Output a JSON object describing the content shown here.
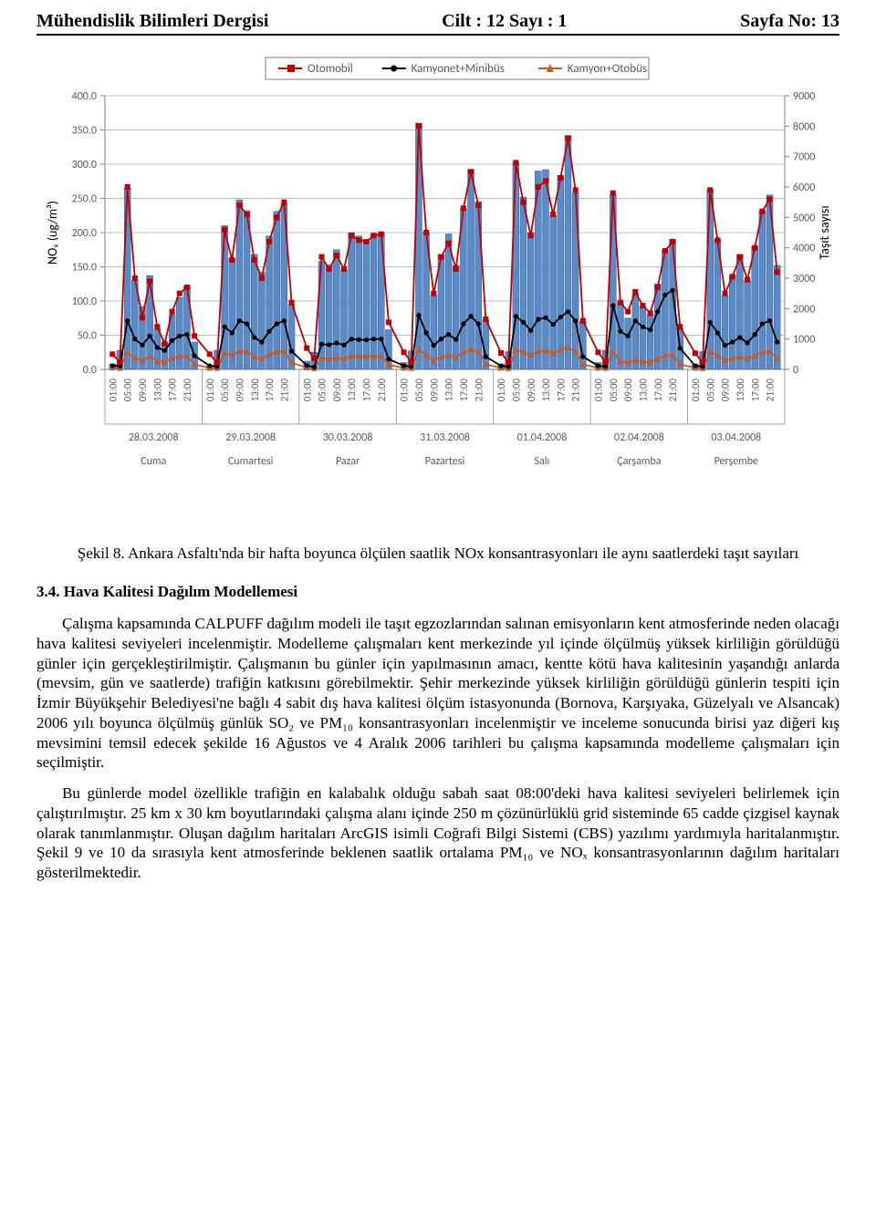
{
  "header": {
    "left": "Mühendislik Bilimleri Dergisi",
    "center": "Cilt : 12 Sayı : 1",
    "right": "Sayfa No: 13"
  },
  "chart": {
    "type": "combo-bar-line",
    "background_color": "#ffffff",
    "plot_border_color": "#808080",
    "grid_color": "#bfbfbf",
    "axis_text_color": "#595959",
    "tick_font_size": 12,
    "legend_font_size": 13,
    "left_axis": {
      "label": "NOₓ (ug/m³)",
      "min": 0,
      "max": 400,
      "step": 50,
      "ticks": [
        "0.0",
        "50.0",
        "100.0",
        "150.0",
        "200.0",
        "250.0",
        "300.0",
        "350.0",
        "400.0"
      ]
    },
    "right_axis": {
      "label": "Taşıt sayısı",
      "min": 0,
      "max": 9000,
      "step": 1000,
      "ticks": [
        "0",
        "1000",
        "2000",
        "3000",
        "4000",
        "5000",
        "6000",
        "7000",
        "8000",
        "9000"
      ]
    },
    "legend": [
      {
        "name": "Otomobil",
        "type": "line-square",
        "color": "#c00000"
      },
      {
        "name": "Kamyonet+Minibüs",
        "type": "line-dot",
        "color": "#000000"
      },
      {
        "name": "Kamyon+Otobüs",
        "type": "line-triangle",
        "color": "#c55a2a"
      }
    ],
    "bar_color": "#5b8bc7",
    "bar_border_color": "#2e5a99",
    "days": [
      {
        "date": "28.03.2008",
        "name": "Cuma",
        "hours": [
          "01:00",
          "05:00",
          "09:00",
          "13:00",
          "17:00",
          "21:00"
        ],
        "bars_nox": [
          8,
          28,
          265,
          130,
          92,
          137,
          59,
          39,
          80,
          105,
          122,
          40
        ],
        "otomobil": [
          500,
          230,
          6000,
          3000,
          1700,
          2900,
          1400,
          850,
          1900,
          2500,
          2700,
          1100
        ],
        "kam_min": [
          120,
          110,
          1600,
          1000,
          800,
          1100,
          720,
          620,
          950,
          1100,
          1150,
          450
        ],
        "kam_oto": [
          60,
          40,
          550,
          380,
          280,
          430,
          280,
          240,
          370,
          430,
          450,
          160
        ]
      },
      {
        "date": "29.03.2008",
        "name": "Cumartesi",
        "hours": [
          "01:00",
          "05:00",
          "09:00",
          "13:00",
          "17:00",
          "21:00"
        ],
        "bars_nox": [
          5,
          28,
          210,
          162,
          248,
          232,
          168,
          142,
          195,
          231,
          242,
          95
        ],
        "otomobil": [
          500,
          220,
          4600,
          3600,
          5400,
          5100,
          3600,
          3000,
          4200,
          5000,
          5500,
          2200
        ],
        "kam_min": [
          120,
          100,
          1400,
          1200,
          1600,
          1500,
          1050,
          900,
          1250,
          1500,
          1600,
          600
        ],
        "kam_oto": [
          50,
          40,
          540,
          460,
          600,
          590,
          420,
          350,
          490,
          570,
          600,
          220
        ]
      },
      {
        "date": "30.03.2008",
        "name": "Pazar",
        "hours": [
          "01:00",
          "05:00",
          "09:00",
          "13:00",
          "17:00",
          "21:00"
        ],
        "bars_nox": [
          12,
          25,
          158,
          153,
          175,
          145,
          200,
          195,
          190,
          198,
          200,
          58
        ],
        "otomobil": [
          700,
          360,
          3700,
          3300,
          3750,
          3300,
          4400,
          4250,
          4200,
          4400,
          4450,
          1550
        ],
        "kam_min": [
          130,
          75,
          830,
          810,
          870,
          800,
          1000,
          980,
          970,
          1000,
          1000,
          340
        ],
        "kam_oto": [
          55,
          35,
          360,
          350,
          380,
          350,
          440,
          430,
          420,
          440,
          440,
          150
        ]
      },
      {
        "date": "31.03.2008",
        "name": "Pazartesi",
        "hours": [
          "01:00",
          "05:00",
          "09:00",
          "13:00",
          "17:00",
          "21:00"
        ],
        "bars_nox": [
          10,
          27,
          360,
          200,
          108,
          168,
          198,
          152,
          235,
          292,
          245,
          72
        ],
        "otomobil": [
          560,
          240,
          8000,
          4500,
          2500,
          3700,
          4150,
          3300,
          5300,
          6500,
          5400,
          1650
        ],
        "kam_min": [
          120,
          95,
          1780,
          1200,
          790,
          1000,
          1150,
          980,
          1500,
          1750,
          1500,
          420
        ],
        "kam_oto": [
          50,
          40,
          660,
          460,
          300,
          410,
          460,
          390,
          570,
          650,
          590,
          170
        ]
      },
      {
        "date": "01.04.2008",
        "name": "Salı",
        "hours": [
          "01:00",
          "05:00",
          "09:00",
          "13:00",
          "17:00",
          "21:00"
        ],
        "bars_nox": [
          8,
          26,
          302,
          252,
          200,
          290,
          292,
          225,
          283,
          342,
          258,
          70
        ],
        "otomobil": [
          540,
          235,
          6800,
          5500,
          4400,
          6000,
          6200,
          5100,
          6300,
          7600,
          5900,
          1600
        ],
        "kam_min": [
          115,
          92,
          1750,
          1550,
          1280,
          1650,
          1700,
          1480,
          1720,
          1900,
          1600,
          420
        ],
        "kam_oto": [
          48,
          38,
          640,
          570,
          470,
          600,
          620,
          540,
          630,
          720,
          590,
          165
        ]
      },
      {
        "date": "02.04.2008",
        "name": "Çarşamba",
        "hours": [
          "01:00",
          "05:00",
          "09:00",
          "13:00",
          "17:00",
          "21:00"
        ],
        "bars_nox": [
          10,
          28,
          255,
          98,
          75,
          110,
          92,
          80,
          125,
          175,
          190,
          60
        ],
        "otomobil": [
          560,
          240,
          5800,
          2200,
          1900,
          2550,
          2100,
          1850,
          2700,
          3900,
          4200,
          1400
        ],
        "kam_min": [
          120,
          95,
          2100,
          1250,
          1100,
          1600,
          1400,
          1300,
          1900,
          2450,
          2600,
          700
        ],
        "kam_oto": [
          50,
          40,
          590,
          260,
          230,
          300,
          260,
          240,
          330,
          450,
          480,
          170
        ]
      },
      {
        "date": "03.04.2008",
        "name": "Perşembe",
        "hours": [
          "01:00",
          "05:00",
          "09:00",
          "13:00",
          "17:00",
          "21:00"
        ],
        "bars_nox": [
          8,
          26,
          262,
          190,
          108,
          138,
          168,
          130,
          180,
          232,
          255,
          152
        ],
        "otomobil": [
          530,
          235,
          5900,
          4250,
          2500,
          3050,
          3700,
          2950,
          4000,
          5200,
          5600,
          3200
        ],
        "kam_min": [
          115,
          92,
          1550,
          1200,
          790,
          900,
          1050,
          870,
          1150,
          1500,
          1600,
          900
        ],
        "kam_oto": [
          47,
          38,
          580,
          460,
          300,
          360,
          410,
          350,
          440,
          560,
          600,
          370
        ]
      }
    ]
  },
  "caption": {
    "label": "Şekil 8.",
    "text": "Ankara Asfaltı'nda bir hafta boyunca ölçülen saatlik NOx konsantrasyonları ile aynı saatlerdeki taşıt sayıları"
  },
  "section_heading": "3.4. Hava Kalitesi Dağılım Modellemesi",
  "para1": "Çalışma kapsamında CALPUFF dağılım modeli ile taşıt egzozlarından salınan emisyonların kent atmosferinde neden olacağı hava kalitesi seviyeleri incelenmiştir. Modelleme çalışmaları kent merkezinde yıl içinde ölçülmüş yüksek kirliliğin görüldüğü günler için gerçekleştirilmiştir. Çalışmanın bu günler için yapılmasının amacı, kentte kötü hava kalitesinin yaşandığı anlarda (mevsim, gün ve saatlerde) trafiğin katkısını görebilmektir. Şehir merkezinde yüksek kirliliğin görüldüğü günlerin tespiti için İzmir Büyükşehir Belediyesi'ne bağlı 4 sabit dış hava kalitesi ölçüm istasyonunda (Bornova, Karşıyaka, Güzelyalı ve Alsancak) 2006 yılı boyunca ölçülmüş günlük SO₂ ve PM₁₀ konsantrasyonları incelenmiştir ve inceleme sonucunda birisi yaz diğeri kış mevsimini temsil edecek şekilde 16 Ağustos ve 4 Aralık 2006 tarihleri bu çalışma kapsamında modelleme çalışmaları için seçilmiştir.",
  "para2": "Bu günlerde model özellikle trafiğin en kalabalık olduğu sabah saat 08:00'deki hava kalitesi seviyeleri belirlemek için çalıştırılmıştır. 25 km x 30 km boyutlarındaki çalışma alanı içinde 250 m çözünürlüklü grid sisteminde 65 cadde çizgisel kaynak olarak tanımlanmıştır. Oluşan dağılım haritaları ArcGIS isimli Coğrafi Bilgi Sistemi (CBS) yazılımı yardımıyla haritalanmıştır. Şekil 9 ve 10 da sırasıyla kent atmosferinde beklenen saatlik ortalama PM₁₀ ve NOₓ konsantrasyonlarının dağılım haritaları gösterilmektedir."
}
